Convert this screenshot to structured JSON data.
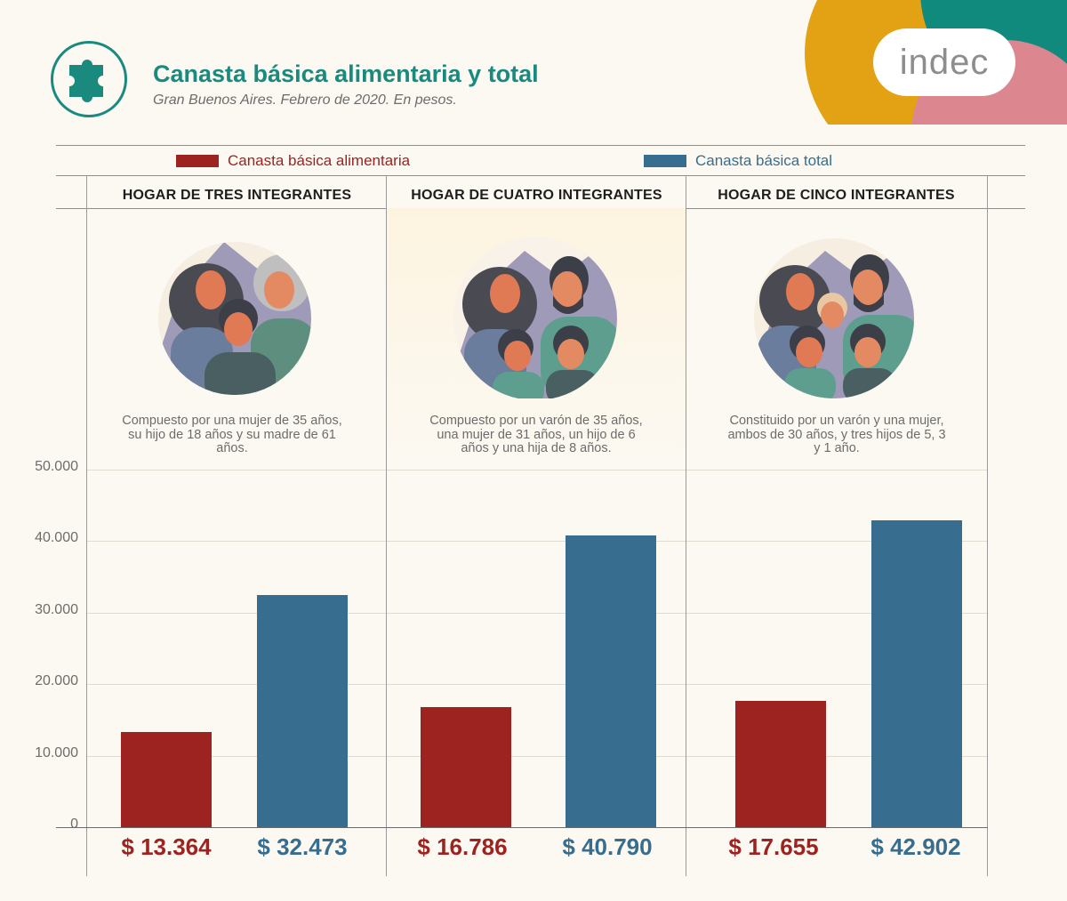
{
  "header": {
    "title": "Canasta básica alimentaria y total",
    "subtitle": "Gran Buenos Aires. Febrero de 2020. En pesos.",
    "logo_text": "indec"
  },
  "legend": {
    "food_label": "Canasta básica alimentaria",
    "total_label": "Canasta básica total"
  },
  "households": [
    {
      "header": "HOGAR DE TRES INTEGRANTES",
      "description": "Compuesto por una mujer de 35 años, su hijo de 18 años y su madre de 61 años.",
      "food_label": "$ 13.364",
      "total_label": "$ 32.473"
    },
    {
      "header": "HOGAR DE CUATRO INTEGRANTES",
      "description": "Compuesto por un varón de 35 años, una mujer de 31 años, un hijo de 6 años y una hija de 8 años.",
      "food_label": "$ 16.786",
      "total_label": "$ 40.790"
    },
    {
      "header": "HOGAR DE CINCO INTEGRANTES",
      "description": "Constituido por un varón y una mujer, ambos de 30 años, y tres hijos de 5, 3 y 1 año.",
      "food_label": "$ 17.655",
      "total_label": "$ 42.902"
    }
  ],
  "colors": {
    "food": "#9c2320",
    "total": "#376d8e",
    "teal": "#1a8a7e",
    "corner_orange": "#e3a214",
    "corner_teal": "#108a7c",
    "corner_pink": "#dc8790"
  },
  "icons": [
    "puzzle-icon",
    "family-illustration"
  ],
  "chart_data": {
    "type": "bar",
    "categories": [
      "HOGAR DE TRES INTEGRANTES",
      "HOGAR DE CUATRO INTEGRANTES",
      "HOGAR DE CINCO INTEGRANTES"
    ],
    "series": [
      {
        "name": "Canasta básica alimentaria",
        "values": [
          13364,
          16786,
          17655
        ]
      },
      {
        "name": "Canasta básica total",
        "values": [
          32473,
          40790,
          42902
        ]
      }
    ],
    "yticks": [
      "0",
      "10.000",
      "20.000",
      "30.000",
      "40.000",
      "50.000"
    ],
    "ytick_values": [
      0,
      10000,
      20000,
      30000,
      40000,
      50000
    ],
    "ylim": [
      0,
      50000
    ],
    "grid": true,
    "legend_position": "top"
  }
}
